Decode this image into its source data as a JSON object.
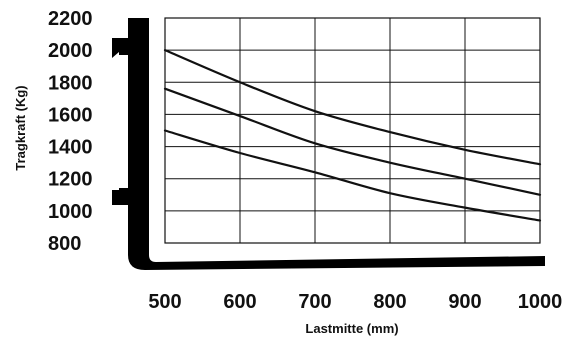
{
  "chart_data": {
    "type": "line",
    "title": "",
    "xlabel": "Lastmitte (mm)",
    "ylabel": "Tragkraft (Kg)",
    "xlim": [
      500,
      1000
    ],
    "ylim": [
      800,
      2200
    ],
    "x_ticks": [
      "500",
      "600",
      "700",
      "800",
      "900",
      "1000"
    ],
    "y_ticks": [
      "2200",
      "2000",
      "1800",
      "1600",
      "1400",
      "1200",
      "1000",
      "800"
    ],
    "grid": true,
    "legend": "none",
    "series": [
      {
        "x": [
          500,
          600,
          700,
          800,
          900,
          1000
        ],
        "y": [
          2000,
          1800,
          1620,
          1490,
          1380,
          1290
        ]
      },
      {
        "x": [
          500,
          600,
          700,
          800,
          900,
          1000
        ],
        "y": [
          1760,
          1590,
          1420,
          1300,
          1200,
          1100
        ]
      },
      {
        "x": [
          500,
          600,
          700,
          800,
          900,
          1000
        ],
        "y": [
          1500,
          1360,
          1240,
          1110,
          1020,
          940
        ]
      }
    ],
    "colors": {
      "lines": "#111111",
      "grid": "#111111",
      "fork": "#000000"
    }
  }
}
